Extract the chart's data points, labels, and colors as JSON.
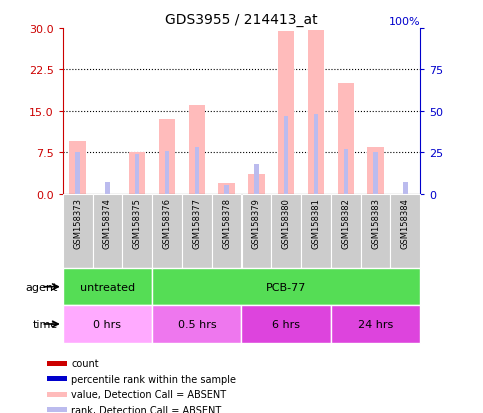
{
  "title": "GDS3955 / 214413_at",
  "samples": [
    "GSM158373",
    "GSM158374",
    "GSM158375",
    "GSM158376",
    "GSM158377",
    "GSM158378",
    "GSM158379",
    "GSM158380",
    "GSM158381",
    "GSM158382",
    "GSM158383",
    "GSM158384"
  ],
  "value_absent": [
    9.5,
    0.0,
    7.5,
    13.5,
    16.0,
    2.0,
    3.5,
    29.5,
    29.7,
    20.0,
    8.5,
    0.0
  ],
  "rank_absent": [
    25,
    7,
    24,
    26,
    28,
    5,
    18,
    47,
    48,
    27,
    25,
    7
  ],
  "ylim_left": [
    0,
    30
  ],
  "ylim_right": [
    0,
    100
  ],
  "yticks_left": [
    0,
    7.5,
    15,
    22.5,
    30
  ],
  "yticks_right": [
    0,
    25,
    50,
    75,
    100
  ],
  "color_count": "#cc0000",
  "color_percentile": "#0000cc",
  "color_value_absent": "#ffbbbb",
  "color_rank_absent": "#bbbbee",
  "left_tick_color": "#cc0000",
  "right_tick_color": "#0000cc",
  "agent_groups": [
    {
      "label": "untreated",
      "start": 0,
      "end": 3
    },
    {
      "label": "PCB-77",
      "start": 3,
      "end": 12
    }
  ],
  "agent_color": "#55dd55",
  "time_groups": [
    {
      "label": "0 hrs",
      "start": 0,
      "end": 3,
      "color": "#ffaaff"
    },
    {
      "label": "0.5 hrs",
      "start": 3,
      "end": 6,
      "color": "#ee77ee"
    },
    {
      "label": "6 hrs",
      "start": 6,
      "end": 9,
      "color": "#dd44dd"
    },
    {
      "label": "24 hrs",
      "start": 9,
      "end": 12,
      "color": "#dd44dd"
    }
  ],
  "legend_items": [
    {
      "color": "#cc0000",
      "label": "count"
    },
    {
      "color": "#0000cc",
      "label": "percentile rank within the sample"
    },
    {
      "color": "#ffbbbb",
      "label": "value, Detection Call = ABSENT"
    },
    {
      "color": "#bbbbee",
      "label": "rank, Detection Call = ABSENT"
    }
  ]
}
